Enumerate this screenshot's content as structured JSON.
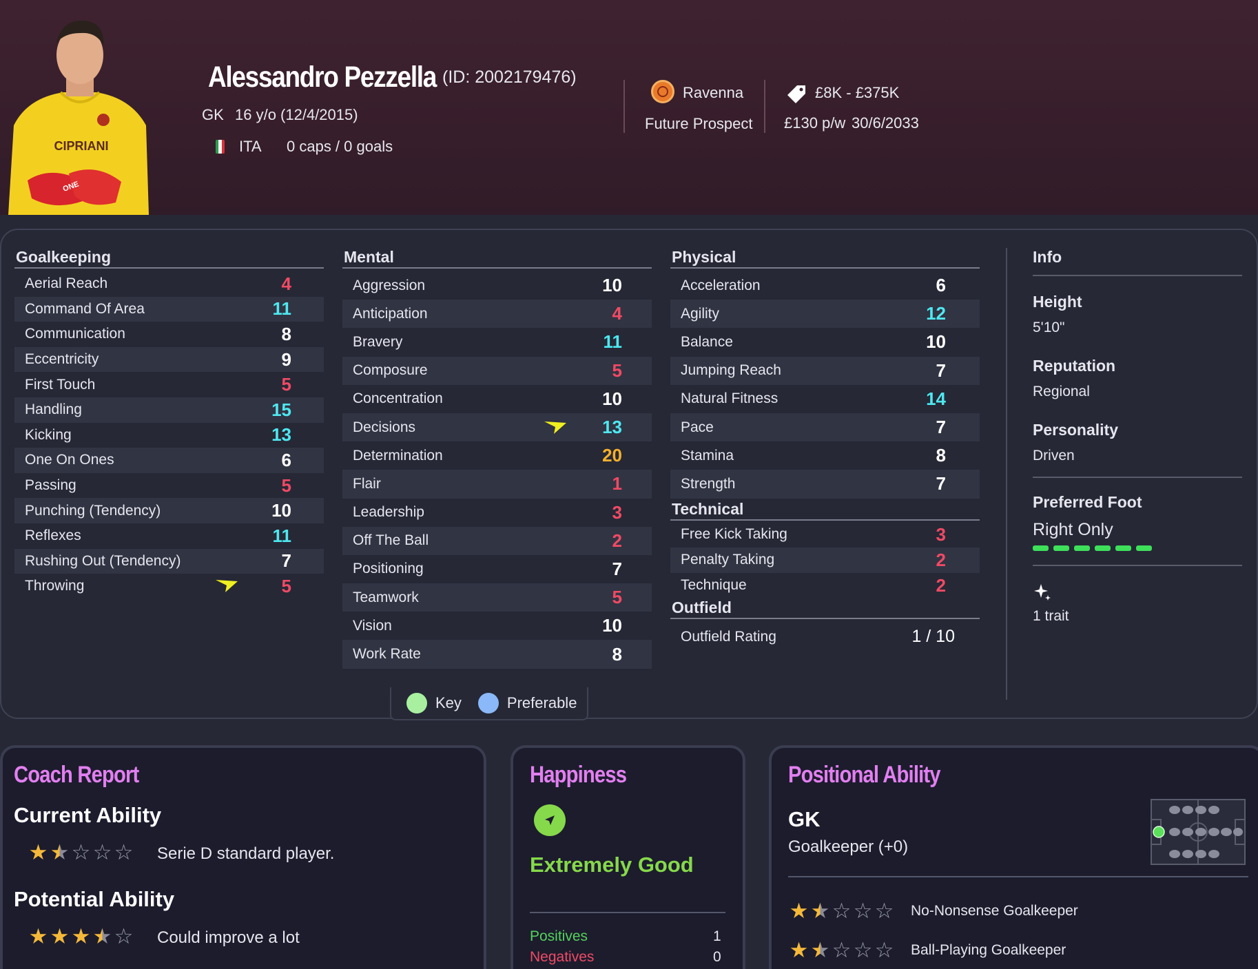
{
  "player": {
    "name": "Alessandro Pezzella",
    "id_text": "(ID: 2002179476)",
    "position": "GK",
    "age_text": "16 y/o (12/4/2015)",
    "nationality": "ITA",
    "caps_text": "0 caps / 0 goals",
    "club": "Ravenna",
    "status": "Future Prospect",
    "value_range": "£8K - £375K",
    "wage": "£130 p/w",
    "contract_end": "30/6/2033",
    "shirt_sponsor": "CIPRIANI",
    "glove_brand": "ONE"
  },
  "goalkeeping": {
    "title": "Goalkeeping",
    "rows": [
      {
        "label": "Aerial Reach",
        "value": "4",
        "color": "red"
      },
      {
        "label": "Command Of Area",
        "value": "11",
        "color": "cyan"
      },
      {
        "label": "Communication",
        "value": "8",
        "color": "white"
      },
      {
        "label": "Eccentricity",
        "value": "9",
        "color": "white"
      },
      {
        "label": "First Touch",
        "value": "5",
        "color": "red"
      },
      {
        "label": "Handling",
        "value": "15",
        "color": "cyan"
      },
      {
        "label": "Kicking",
        "value": "13",
        "color": "cyan"
      },
      {
        "label": "One On Ones",
        "value": "6",
        "color": "white"
      },
      {
        "label": "Passing",
        "value": "5",
        "color": "red"
      },
      {
        "label": "Punching (Tendency)",
        "value": "10",
        "color": "white"
      },
      {
        "label": "Reflexes",
        "value": "11",
        "color": "cyan"
      },
      {
        "label": "Rushing Out (Tendency)",
        "value": "7",
        "color": "white"
      },
      {
        "label": "Throwing",
        "value": "5",
        "color": "red",
        "arrow": true
      }
    ]
  },
  "mental": {
    "title": "Mental",
    "rows": [
      {
        "label": "Aggression",
        "value": "10",
        "color": "white"
      },
      {
        "label": "Anticipation",
        "value": "4",
        "color": "red"
      },
      {
        "label": "Bravery",
        "value": "11",
        "color": "cyan"
      },
      {
        "label": "Composure",
        "value": "5",
        "color": "red"
      },
      {
        "label": "Concentration",
        "value": "10",
        "color": "white"
      },
      {
        "label": "Decisions",
        "value": "13",
        "color": "cyan",
        "arrow": true
      },
      {
        "label": "Determination",
        "value": "20",
        "color": "orange"
      },
      {
        "label": "Flair",
        "value": "1",
        "color": "red"
      },
      {
        "label": "Leadership",
        "value": "3",
        "color": "red"
      },
      {
        "label": "Off The Ball",
        "value": "2",
        "color": "red"
      },
      {
        "label": "Positioning",
        "value": "7",
        "color": "white"
      },
      {
        "label": "Teamwork",
        "value": "5",
        "color": "red"
      },
      {
        "label": "Vision",
        "value": "10",
        "color": "white"
      },
      {
        "label": "Work Rate",
        "value": "8",
        "color": "white"
      }
    ]
  },
  "physical": {
    "title": "Physical",
    "rows": [
      {
        "label": "Acceleration",
        "value": "6",
        "color": "white"
      },
      {
        "label": "Agility",
        "value": "12",
        "color": "cyan"
      },
      {
        "label": "Balance",
        "value": "10",
        "color": "white"
      },
      {
        "label": "Jumping Reach",
        "value": "7",
        "color": "white"
      },
      {
        "label": "Natural Fitness",
        "value": "14",
        "color": "cyan"
      },
      {
        "label": "Pace",
        "value": "7",
        "color": "white"
      },
      {
        "label": "Stamina",
        "value": "8",
        "color": "white"
      },
      {
        "label": "Strength",
        "value": "7",
        "color": "white"
      }
    ]
  },
  "technical": {
    "title": "Technical",
    "rows": [
      {
        "label": "Free Kick Taking",
        "value": "3",
        "color": "red"
      },
      {
        "label": "Penalty Taking",
        "value": "2",
        "color": "red"
      },
      {
        "label": "Technique",
        "value": "2",
        "color": "red"
      }
    ]
  },
  "outfield": {
    "title": "Outfield",
    "label": "Outfield Rating",
    "value": "1 / 10"
  },
  "info": {
    "title": "Info",
    "height_label": "Height",
    "height": "5'10\"",
    "reputation_label": "Reputation",
    "reputation": "Regional",
    "personality_label": "Personality",
    "personality": "Driven",
    "foot_label": "Preferred Foot",
    "foot": "Right Only",
    "traits": "1 trait"
  },
  "legend": {
    "key": "Key",
    "preferable": "Preferable"
  },
  "coach_report": {
    "title": "Coach Report",
    "current_label": "Current Ability",
    "current_stars": 1.5,
    "current_text": "Serie D standard player.",
    "potential_label": "Potential Ability",
    "potential_stars": 3.5,
    "potential_text": "Could improve a lot"
  },
  "happiness": {
    "title": "Happiness",
    "level": "Extremely Good",
    "positives_label": "Positives",
    "positives": "1",
    "negatives_label": "Negatives",
    "negatives": "0"
  },
  "positional": {
    "title": "Positional Ability",
    "position": "GK",
    "position_detail": "Goalkeeper (+0)",
    "roles": [
      {
        "name": "No-Nonsense Goalkeeper",
        "stars": 1.5
      },
      {
        "name": "Ball-Playing Goalkeeper",
        "stars": 1.5
      }
    ]
  },
  "colors": {
    "red": "#f04a64",
    "cyan": "#4ee8f0",
    "white": "#ffffff",
    "orange": "#f6b12a",
    "accent_title": "#e27ff0",
    "happy_green": "#86d94a",
    "star_gold": "#f5b93a",
    "foot_green": "#3ee05a",
    "key_green": "#a8f0a0",
    "pref_blue": "#8ab8f8"
  }
}
